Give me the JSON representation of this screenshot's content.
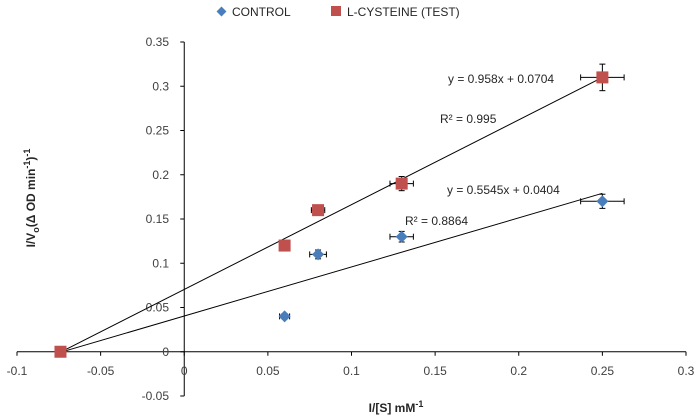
{
  "chart_data": {
    "type": "scatter",
    "title": "",
    "xlabel": "I/[S] mM",
    "xlabel_sup": "-1",
    "ylabel": "I/V",
    "ylabel_sub": "o",
    "ylabel_rest": "(Δ OD min",
    "ylabel_sup1": "-1",
    "ylabel_close": ")",
    "ylabel_sup2": "-1",
    "xlim": [
      -0.1,
      0.3
    ],
    "ylim": [
      -0.05,
      0.35
    ],
    "xticks": [
      -0.1,
      -0.05,
      0,
      0.05,
      0.1,
      0.15,
      0.2,
      0.25,
      0.3
    ],
    "xtick_labels": [
      "-0.1",
      "-0.05",
      "0",
      "0.05",
      "0.1",
      "0.15",
      "0.2",
      "0.25",
      "0.3"
    ],
    "yticks": [
      -0.05,
      0,
      0.05,
      0.1,
      0.15,
      0.2,
      0.25,
      0.3,
      0.35
    ],
    "ytick_labels": [
      "-0.05",
      "0",
      "0.05",
      "0.1",
      "0.15",
      "0.2",
      "0.25",
      "0.3",
      "0.35"
    ],
    "legend": "top",
    "grid": false,
    "series": [
      {
        "name": "CONTROL",
        "marker": "diamond",
        "color": "#4A7EBB",
        "points": [
          {
            "x": -0.074,
            "y": 0,
            "xerr": 0,
            "yerr": 0
          },
          {
            "x": 0.06,
            "y": 0.04,
            "xerr": 0.003,
            "yerr": 0.003
          },
          {
            "x": 0.08,
            "y": 0.11,
            "xerr": 0.005,
            "yerr": 0.005
          },
          {
            "x": 0.13,
            "y": 0.13,
            "xerr": 0.007,
            "yerr": 0.006
          },
          {
            "x": 0.25,
            "y": 0.17,
            "xerr": 0.013,
            "yerr": 0.008
          }
        ],
        "trendline": {
          "slope": 0.5545,
          "intercept": 0.0404,
          "x_range": [
            -0.074,
            0.25
          ]
        },
        "equation": "y = 0.5545x + 0.0404",
        "r2": "R² = 0.8864"
      },
      {
        "name": "L-CYSTEINE (TEST)",
        "marker": "square",
        "color": "#C0504D",
        "points": [
          {
            "x": -0.074,
            "y": 0,
            "xerr": 0,
            "yerr": 0
          },
          {
            "x": 0.06,
            "y": 0.12,
            "xerr": 0,
            "yerr": 0
          },
          {
            "x": 0.08,
            "y": 0.16,
            "xerr": 0.004,
            "yerr": 0.004
          },
          {
            "x": 0.13,
            "y": 0.19,
            "xerr": 0.007,
            "yerr": 0.008
          },
          {
            "x": 0.25,
            "y": 0.31,
            "xerr": 0.013,
            "yerr": 0.015
          }
        ],
        "trendline": {
          "slope": 0.958,
          "intercept": 0.0704,
          "x_range": [
            -0.074,
            0.25
          ]
        },
        "equation": "y = 0.958x + 0.0704",
        "r2": "R² = 0.995"
      }
    ]
  }
}
